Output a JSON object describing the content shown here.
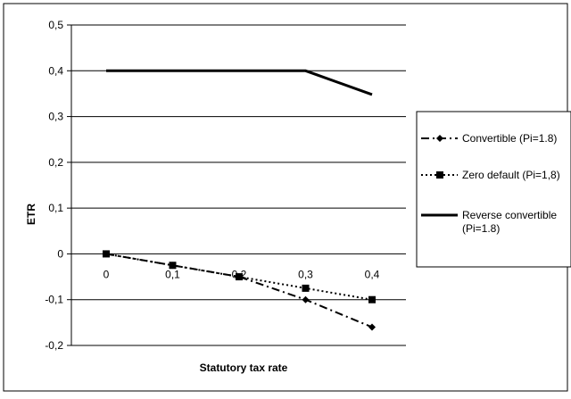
{
  "chart_data": {
    "type": "line",
    "xlabel": "Statutory tax rate",
    "ylabel": "ETR",
    "ylim": [
      -0.2,
      0.5
    ],
    "xlim": [
      0,
      0.4
    ],
    "grid": "horizontal",
    "legend_placement": "right",
    "x": [
      0,
      0.1,
      0.2,
      0.3,
      0.4
    ],
    "x_tick_labels": [
      "0",
      "0,1",
      "0,2",
      "0,3",
      "0,4"
    ],
    "y_ticks": [
      -0.2,
      -0.1,
      0,
      0.1,
      0.2,
      0.3,
      0.4,
      0.5
    ],
    "y_tick_labels": [
      "-0,2",
      "-0,1",
      "0",
      "0,1",
      "0,2",
      "0,3",
      "0,4",
      "0,5"
    ],
    "series": [
      {
        "name": "Convertible (Pi=1.8)",
        "x": [
          0,
          0.1,
          0.2,
          0.3,
          0.4
        ],
        "values": [
          0,
          -0.025,
          -0.05,
          -0.1,
          -0.16
        ],
        "style": "dash-dot",
        "marker": "diamond",
        "color": "#000000"
      },
      {
        "name": "Zero default (Pi=1,8)",
        "x": [
          0,
          0.1,
          0.2,
          0.3,
          0.4
        ],
        "values": [
          0,
          -0.025,
          -0.05,
          -0.075,
          -0.1
        ],
        "style": "dotted",
        "marker": "square",
        "color": "#000000"
      },
      {
        "name": "Reverse convertible (Pi=1.8)",
        "x": [
          0,
          0.1,
          0.2,
          0.3,
          0.4
        ],
        "values": [
          0.4,
          0.4,
          0.4,
          0.4,
          0.348
        ],
        "style": "solid",
        "marker": "none",
        "color": "#000000"
      }
    ],
    "legend": [
      {
        "lines": [
          "Convertible (Pi=1.8)"
        ]
      },
      {
        "lines": [
          "Zero default (Pi=1,8)"
        ]
      },
      {
        "lines": [
          "Reverse convertible",
          "(Pi=1.8)"
        ]
      }
    ]
  }
}
